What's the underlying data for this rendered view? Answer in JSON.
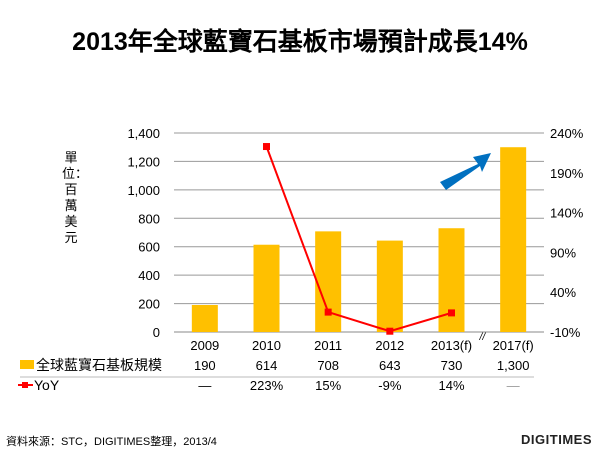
{
  "chart_data": {
    "type": "bar+line",
    "title": "2013年全球藍寶石基板市場預計成長14%",
    "ylabel": "單位：百萬美元",
    "categories": [
      "2009",
      "2010",
      "2011",
      "2012",
      "2013(f)",
      "2017(f)"
    ],
    "series": [
      {
        "name": "全球藍寶石基板規模",
        "type": "bar",
        "axis": "left",
        "color": "#FFC000",
        "values": [
          190,
          614,
          708,
          643,
          730,
          1300
        ],
        "labels": [
          "190",
          "614",
          "708",
          "643",
          "730",
          "1,300"
        ]
      },
      {
        "name": "YoY",
        "type": "line",
        "axis": "right",
        "color": "#FF0000",
        "values": [
          null,
          223,
          15,
          -9,
          14,
          null
        ],
        "labels": [
          "—",
          "223%",
          "15%",
          "-9%",
          "14%",
          "—"
        ]
      }
    ],
    "ylim": [
      0,
      1400
    ],
    "yticks": [
      "0",
      "200",
      "400",
      "600",
      "800",
      "1,000",
      "1,200",
      "1,400"
    ],
    "y2lim": [
      -10,
      240
    ],
    "y2ticks": [
      "-10%",
      "40%",
      "90%",
      "140%",
      "190%",
      "240%"
    ],
    "axis_break_mark": "//",
    "arrow_color": "#0070C0"
  },
  "footer": {
    "source": "資料來源：STC，DIGITIMES整理，2013/4",
    "logo": "DIGITIMES"
  }
}
